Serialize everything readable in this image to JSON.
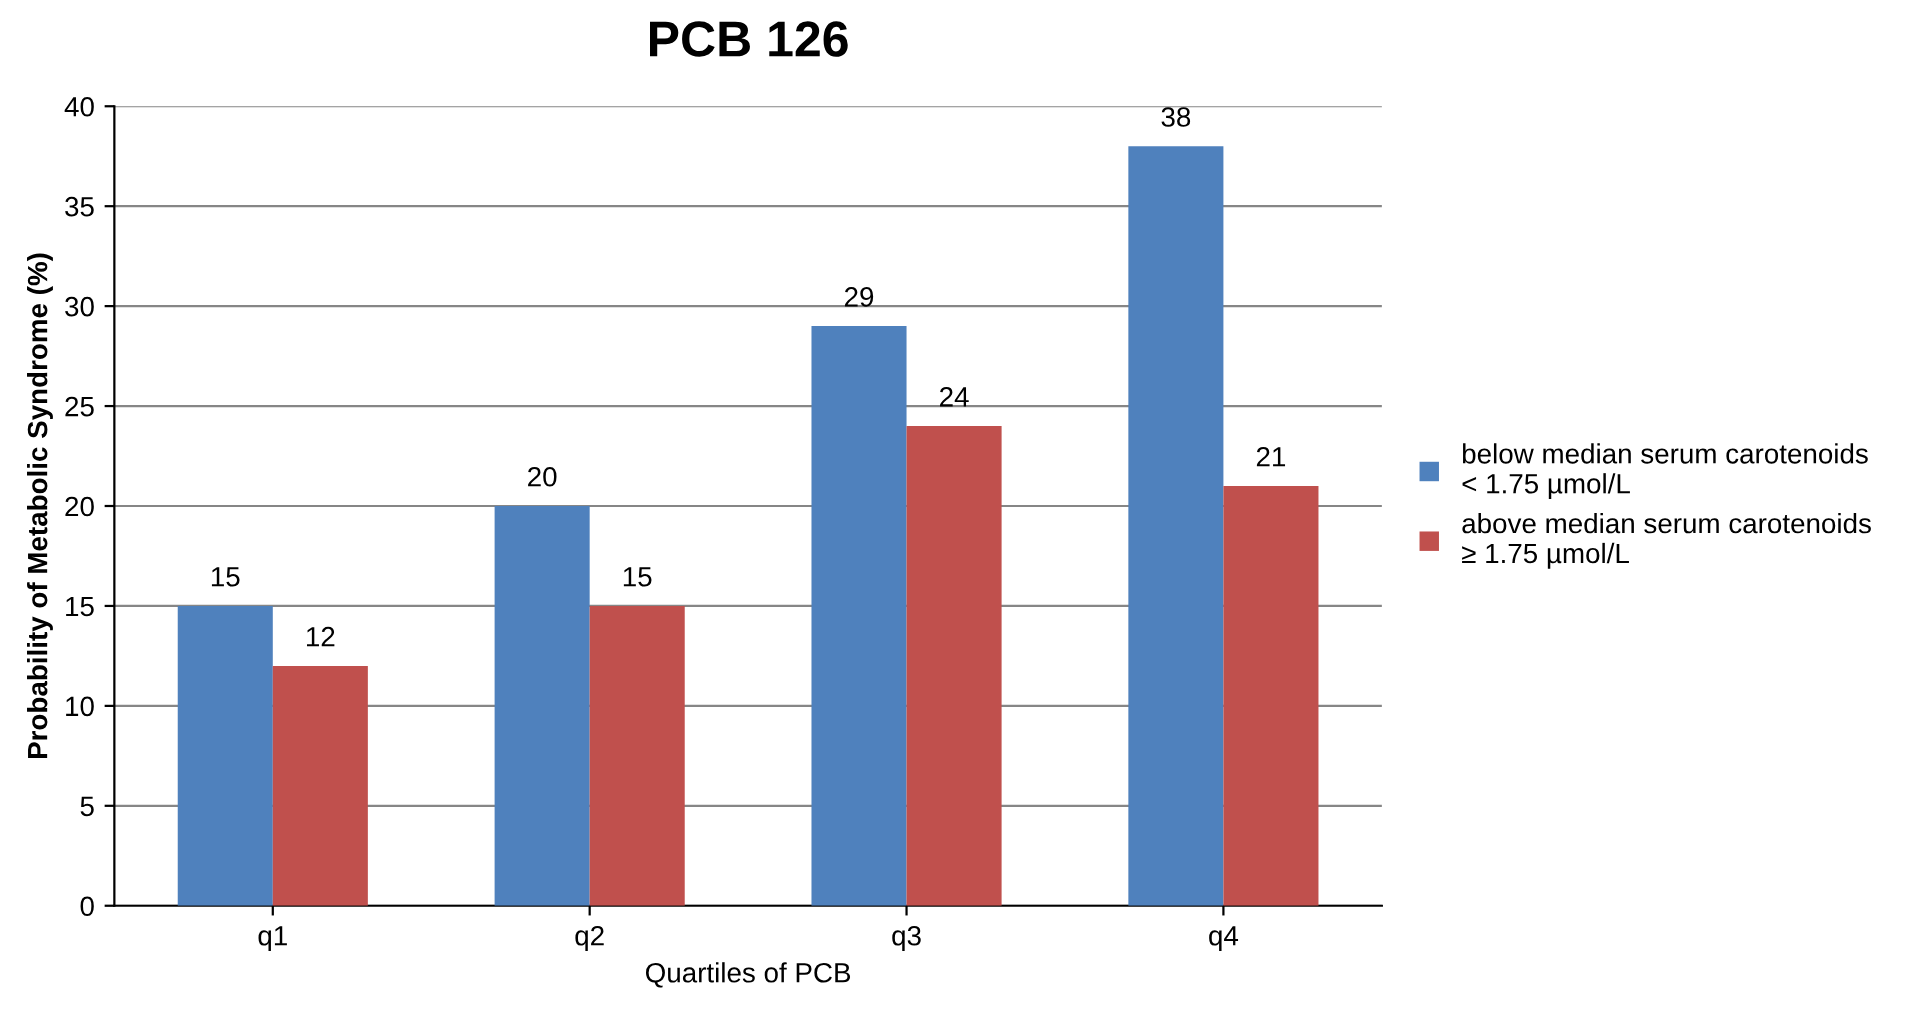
{
  "chart_data": {
    "type": "bar",
    "title": "PCB 126",
    "xlabel": "Quartiles of PCB",
    "ylabel": "Probability of Metabolic Syndrome (%)",
    "categories": [
      "q1",
      "q2",
      "q3",
      "q4"
    ],
    "series": [
      {
        "name": "below median serum carotenoids\n< 1.75 µmol/L",
        "color": "#4f81bd",
        "values": [
          15,
          20,
          29,
          38
        ]
      },
      {
        "name": "above median serum carotenoids\n≥ 1.75 µmol/L",
        "color": "#c0504d",
        "values": [
          12,
          15,
          24,
          21
        ]
      }
    ],
    "ylim": [
      0,
      40
    ],
    "yticks": [
      0,
      5,
      10,
      15,
      20,
      25,
      30,
      35,
      40
    ],
    "grid": "y",
    "legend": "right",
    "data_labels": true
  }
}
